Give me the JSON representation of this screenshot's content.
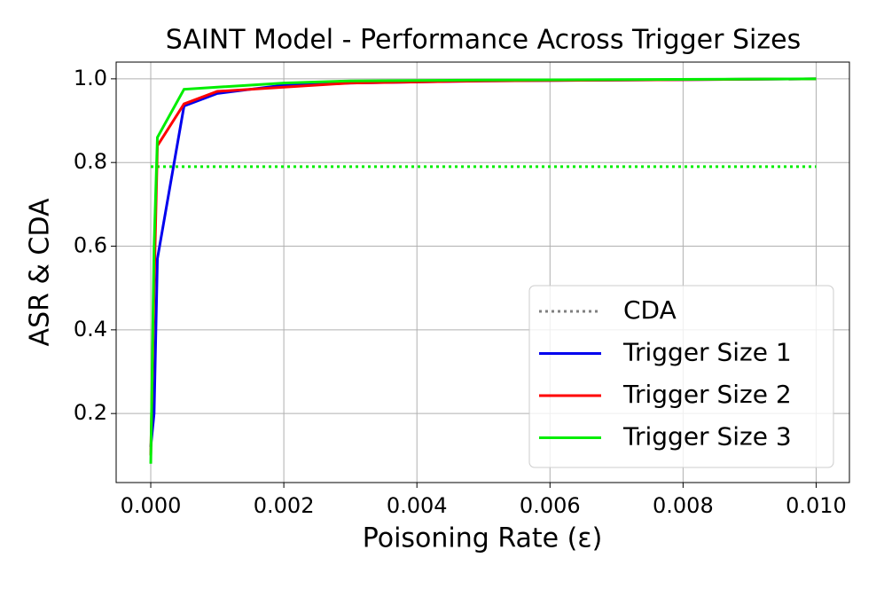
{
  "chart_data": {
    "type": "line",
    "title": "SAINT Model - Performance Across Trigger Sizes",
    "x_label": "Poisoning Rate (ε)",
    "y_label": "ASR & CDA",
    "x": [
      0,
      5e-05,
      0.0001,
      0.0005,
      0.001,
      0.002,
      0.003,
      0.005,
      0.01
    ],
    "series": [
      {
        "name": "CDA",
        "color": "#00ee00",
        "legend_color": "gray",
        "style": "dotted",
        "x": [
          0,
          0.01
        ],
        "values": [
          0.79,
          0.79
        ]
      },
      {
        "name": "Trigger Size 1",
        "color": "#0000ee",
        "style": "solid",
        "values": [
          0.12,
          0.2,
          0.57,
          0.935,
          0.965,
          0.985,
          0.99,
          0.995,
          1.0
        ]
      },
      {
        "name": "Trigger Size 2",
        "color": "#ff0000",
        "style": "solid",
        "values": [
          0.1,
          0.5,
          0.84,
          0.94,
          0.97,
          0.98,
          0.99,
          0.995,
          1.0
        ]
      },
      {
        "name": "Trigger Size 3",
        "color": "#00ee00",
        "style": "solid",
        "values": [
          0.08,
          0.6,
          0.86,
          0.975,
          0.98,
          0.99,
          0.995,
          0.997,
          1.0
        ]
      }
    ],
    "xlim": [
      -0.00052,
      0.0105
    ],
    "ylim": [
      0.035,
      1.04
    ],
    "xticks": [
      {
        "value": 0,
        "label": "0.000"
      },
      {
        "value": 0.002,
        "label": "0.002"
      },
      {
        "value": 0.004,
        "label": "0.004"
      },
      {
        "value": 0.006,
        "label": "0.006"
      },
      {
        "value": 0.008,
        "label": "0.008"
      },
      {
        "value": 0.01,
        "label": "0.010"
      }
    ],
    "yticks": [
      0.2,
      0.4,
      0.6,
      0.8,
      {
        "value": 1.0,
        "label": "1.0"
      }
    ],
    "grid": true,
    "legend": "lower right"
  }
}
